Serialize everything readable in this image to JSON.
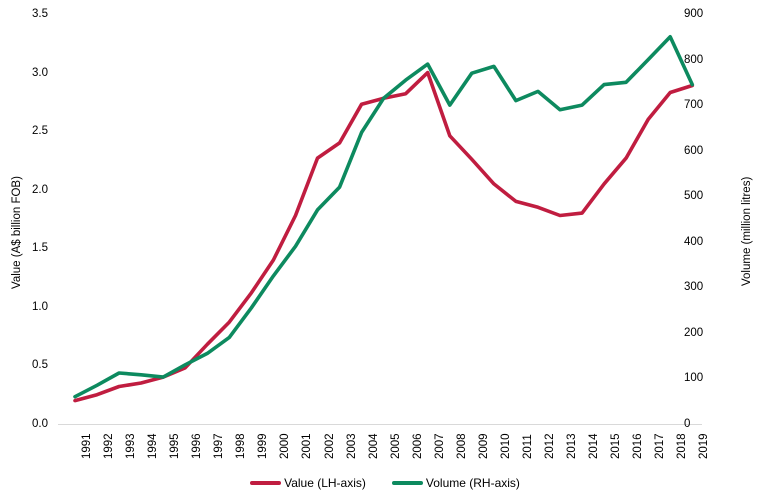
{
  "chart_data": {
    "type": "line",
    "x": [
      1991,
      1992,
      1993,
      1994,
      1995,
      1996,
      1997,
      1998,
      1999,
      2000,
      2001,
      2002,
      2003,
      2004,
      2005,
      2006,
      2007,
      2008,
      2009,
      2010,
      2011,
      2012,
      2013,
      2014,
      2015,
      2016,
      2017,
      2018,
      2019
    ],
    "series": [
      {
        "name": "Value (LH-axis)",
        "axis": "left",
        "color": "#c01d40",
        "values": [
          0.2,
          0.25,
          0.32,
          0.35,
          0.4,
          0.48,
          0.68,
          0.87,
          1.12,
          1.4,
          1.78,
          2.27,
          2.4,
          2.73,
          2.78,
          2.82,
          3.0,
          2.46,
          2.26,
          2.05,
          1.9,
          1.85,
          1.78,
          1.8,
          2.05,
          2.27,
          2.6,
          2.83,
          2.89
        ]
      },
      {
        "name": "Volume (RH-axis)",
        "axis": "right",
        "color": "#0d8a5f",
        "values": [
          60,
          85,
          112,
          108,
          103,
          130,
          155,
          190,
          255,
          325,
          390,
          470,
          520,
          640,
          715,
          755,
          790,
          700,
          770,
          785,
          710,
          730,
          690,
          700,
          745,
          750,
          800,
          850,
          745
        ]
      }
    ],
    "ylabel_left": "Value (A$ billion FOB)",
    "ylabel_right": "Volume (million litres)",
    "ylim_left": [
      0,
      3.5
    ],
    "ylim_right": [
      0,
      900
    ],
    "yticks_left": [
      "0.0",
      "0.5",
      "1.0",
      "1.5",
      "2.0",
      "2.5",
      "3.0",
      "3.5"
    ],
    "yticks_right": [
      "0",
      "100",
      "200",
      "300",
      "400",
      "500",
      "600",
      "700",
      "800",
      "900"
    ],
    "grid": false,
    "legend_position": "bottom",
    "axis_line_color": "#d9d9d9",
    "text_color": "#000000"
  }
}
